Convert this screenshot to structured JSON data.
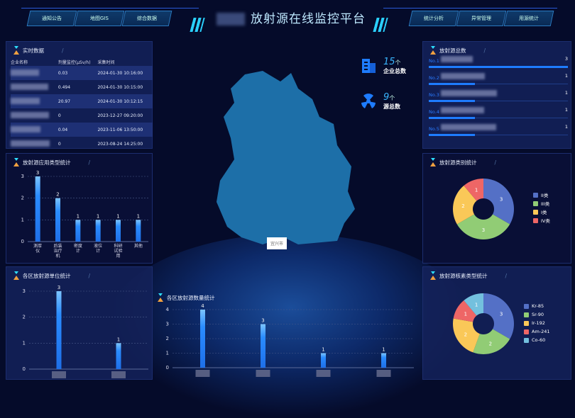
{
  "header": {
    "title": "放射源在线监控平台",
    "nav_left": [
      "通知公告",
      "地图GIS",
      "综合数据"
    ],
    "nav_right": [
      "统计分析",
      "异常管理",
      "用源统计"
    ]
  },
  "realtime": {
    "title": "实时数据",
    "columns": [
      "企业名称",
      "剂量监控(μSv/h)",
      "采集时间"
    ],
    "rows": [
      {
        "dose": "0.03",
        "time": "2024-01-30 10:16:00"
      },
      {
        "dose": "0.494",
        "time": "2024-01-30 10:15:00"
      },
      {
        "dose": "20.97",
        "time": "2024-01-30 10:12:15"
      },
      {
        "dose": "0",
        "time": "2023-12-27 09:20:00"
      },
      {
        "dose": "0.04",
        "time": "2023-11-06 13:50:00"
      },
      {
        "dose": "0",
        "time": "2023-08-24 14:25:00"
      }
    ]
  },
  "ranking": {
    "title": "放射源总数",
    "items": [
      {
        "no": "No.1",
        "value": 3
      },
      {
        "no": "No.2",
        "value": 1
      },
      {
        "no": "No.3",
        "value": 1
      },
      {
        "no": "No.4",
        "value": 1
      },
      {
        "no": "No.5",
        "value": 1
      }
    ]
  },
  "stats": {
    "enterprises": {
      "value": "15",
      "unit": "个",
      "label": "企业总数"
    },
    "sources": {
      "value": "9",
      "unit": "个",
      "label": "源总数"
    }
  },
  "map": {
    "label": "宜兴市",
    "fill": "#1d6fa8"
  },
  "chart_data": [
    {
      "id": "usage",
      "type": "bar",
      "title": "放射源应用类型统计",
      "categories": [
        "测厚仪",
        "后装治疗机",
        "密度计",
        "液位计",
        "科研试验用",
        "其他"
      ],
      "values": [
        3,
        2,
        1,
        1,
        1,
        1
      ],
      "ylim": [
        0,
        3
      ],
      "yticks": [
        0,
        1,
        2,
        3
      ],
      "grid": true
    },
    {
      "id": "district_units",
      "type": "bar",
      "title": "各区放射源单位统计",
      "categories": [
        "",
        ""
      ],
      "values": [
        3,
        1
      ],
      "ylim": [
        0,
        3
      ],
      "yticks": [
        0,
        1,
        2,
        3
      ],
      "grid": true
    },
    {
      "id": "district_sources",
      "type": "bar",
      "title": "各区放射源数量统计",
      "categories": [
        "",
        "",
        "",
        ""
      ],
      "values": [
        4,
        3,
        1,
        1
      ],
      "ylim": [
        0,
        4
      ],
      "yticks": [
        0,
        1,
        2,
        3,
        4
      ],
      "grid": true
    },
    {
      "id": "category",
      "type": "pie",
      "title": "放射源类别统计",
      "labels": [
        "II类",
        "III类",
        "I类",
        "IV类"
      ],
      "values": [
        3,
        3,
        2,
        1
      ],
      "colors": [
        "#5470c6",
        "#91cc75",
        "#fac858",
        "#ee6666"
      ],
      "legend": "right"
    },
    {
      "id": "nuclide",
      "type": "pie",
      "title": "放射源核素类型统计",
      "labels": [
        "Kr-85",
        "Sr-90",
        "Ir-192",
        "Am-241",
        "Co-60"
      ],
      "values": [
        3,
        2,
        2,
        1,
        1
      ],
      "colors": [
        "#5470c6",
        "#91cc75",
        "#fac858",
        "#ee6666",
        "#73c0de"
      ],
      "legend": "right"
    }
  ]
}
